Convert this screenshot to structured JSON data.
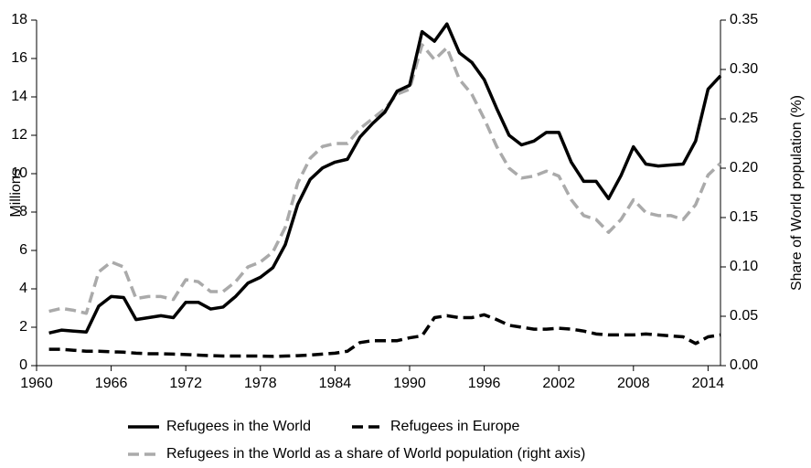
{
  "chart_data": {
    "type": "line",
    "ylabel": "Millions",
    "y2label": "Share of World population (%)",
    "x": [
      1961,
      1962,
      1963,
      1964,
      1965,
      1966,
      1967,
      1968,
      1969,
      1970,
      1971,
      1972,
      1973,
      1974,
      1975,
      1976,
      1977,
      1978,
      1979,
      1980,
      1981,
      1982,
      1983,
      1984,
      1985,
      1986,
      1987,
      1988,
      1989,
      1990,
      1991,
      1992,
      1993,
      1994,
      1995,
      1996,
      1997,
      1998,
      1999,
      2000,
      2001,
      2002,
      2003,
      2004,
      2005,
      2006,
      2007,
      2008,
      2009,
      2010,
      2011,
      2012,
      2013,
      2014,
      2015
    ],
    "xlim": [
      1960,
      2015
    ],
    "xticks": [
      1960,
      1966,
      1972,
      1978,
      1984,
      1990,
      1996,
      2002,
      2008,
      2014
    ],
    "ylim": [
      0,
      18
    ],
    "yticks": [
      0,
      2,
      4,
      6,
      8,
      10,
      12,
      14,
      16,
      18
    ],
    "y2lim": [
      0,
      0.35
    ],
    "y2ticks": [
      {
        "value": 0,
        "label": "0.00"
      },
      0.05,
      {
        "value": 0.1,
        "label": "0.10"
      },
      0.15,
      {
        "value": 0.2,
        "label": "0.20"
      },
      0.25,
      {
        "value": 0.3,
        "label": "0.30"
      },
      0.35
    ],
    "series": [
      {
        "name": "Refugees in the World",
        "color": "#000000",
        "dash": false,
        "values": [
          1.7,
          1.85,
          1.8,
          1.75,
          3.1,
          3.6,
          3.55,
          2.4,
          2.5,
          2.6,
          2.5,
          3.3,
          3.3,
          2.95,
          3.05,
          3.6,
          4.3,
          4.6,
          5.1,
          6.3,
          8.4,
          9.7,
          10.3,
          10.6,
          10.75,
          11.9,
          12.6,
          13.2,
          14.3,
          14.6,
          17.4,
          16.9,
          17.8,
          16.3,
          15.8,
          14.9,
          13.4,
          12.0,
          11.5,
          11.7,
          12.15,
          12.15,
          10.6,
          9.6,
          9.6,
          8.7,
          9.9,
          11.4,
          10.5,
          10.4,
          10.45,
          10.5,
          11.7,
          14.4,
          15.1
        ]
      },
      {
        "name": "Refugees in Europe",
        "color": "#000000",
        "dash": true,
        "values": [
          0.85,
          0.85,
          0.8,
          0.75,
          0.75,
          0.72,
          0.7,
          0.65,
          0.62,
          0.62,
          0.6,
          0.58,
          0.55,
          0.52,
          0.5,
          0.5,
          0.5,
          0.5,
          0.48,
          0.5,
          0.52,
          0.55,
          0.6,
          0.65,
          0.75,
          1.2,
          1.3,
          1.3,
          1.3,
          1.45,
          1.55,
          2.5,
          2.6,
          2.5,
          2.5,
          2.65,
          2.4,
          2.1,
          2.0,
          1.9,
          1.9,
          1.95,
          1.9,
          1.8,
          1.65,
          1.6,
          1.6,
          1.6,
          1.65,
          1.6,
          1.55,
          1.5,
          1.15,
          1.5,
          1.6
        ]
      },
      {
        "name": "Refugees in the World as a share of World population (right axis)",
        "color": "#aaaaaa",
        "dash": true,
        "axis": "y2",
        "values": [
          0.055,
          0.058,
          0.056,
          0.053,
          0.095,
          0.105,
          0.1,
          0.068,
          0.07,
          0.07,
          0.067,
          0.087,
          0.085,
          0.075,
          0.075,
          0.085,
          0.1,
          0.105,
          0.115,
          0.14,
          0.185,
          0.21,
          0.222,
          0.225,
          0.225,
          0.24,
          0.25,
          0.26,
          0.275,
          0.28,
          0.325,
          0.31,
          0.322,
          0.29,
          0.275,
          0.25,
          0.222,
          0.2,
          0.19,
          0.192,
          0.197,
          0.192,
          0.168,
          0.152,
          0.148,
          0.135,
          0.148,
          0.168,
          0.155,
          0.152,
          0.152,
          0.148,
          0.163,
          0.193,
          0.205
        ]
      }
    ]
  }
}
